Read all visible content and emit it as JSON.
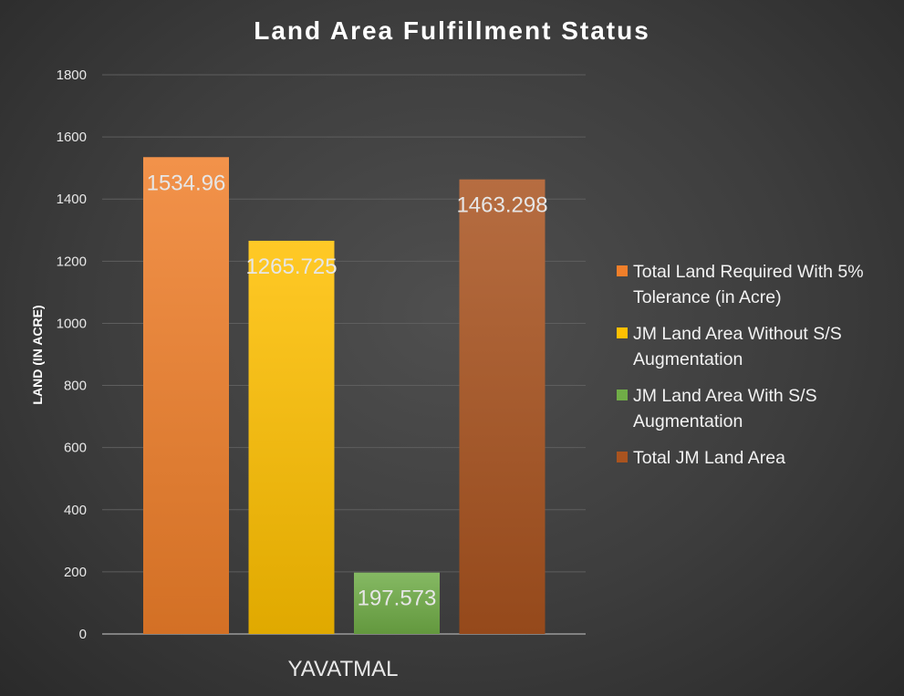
{
  "chart_data": {
    "type": "bar",
    "title": "Land Area Fulfillment Status",
    "xlabel": "",
    "ylabel": "LAND (IN ACRE)",
    "categories": [
      "YAVATMAL"
    ],
    "ylim": [
      0,
      1800
    ],
    "yticks": [
      0,
      200,
      400,
      600,
      800,
      1000,
      1200,
      1400,
      1600,
      1800
    ],
    "grid": true,
    "legend_position": "right",
    "series": [
      {
        "name": "Total Land Required With 5% Tolerance (in Acre)",
        "values": [
          1534.96
        ],
        "label": "1534.96",
        "color": "#f07f2a"
      },
      {
        "name": "JM Land Area Without S/S Augmentation",
        "values": [
          1265.725
        ],
        "label": "1265.725",
        "color": "#ffc000"
      },
      {
        "name": "JM Land Area With S/S Augmentation",
        "values": [
          197.573
        ],
        "label": "197.573",
        "color": "#70ad47"
      },
      {
        "name": "Total JM Land Area",
        "values": [
          1463.298
        ],
        "label": "1463.298",
        "color": "#a9531f"
      }
    ]
  }
}
